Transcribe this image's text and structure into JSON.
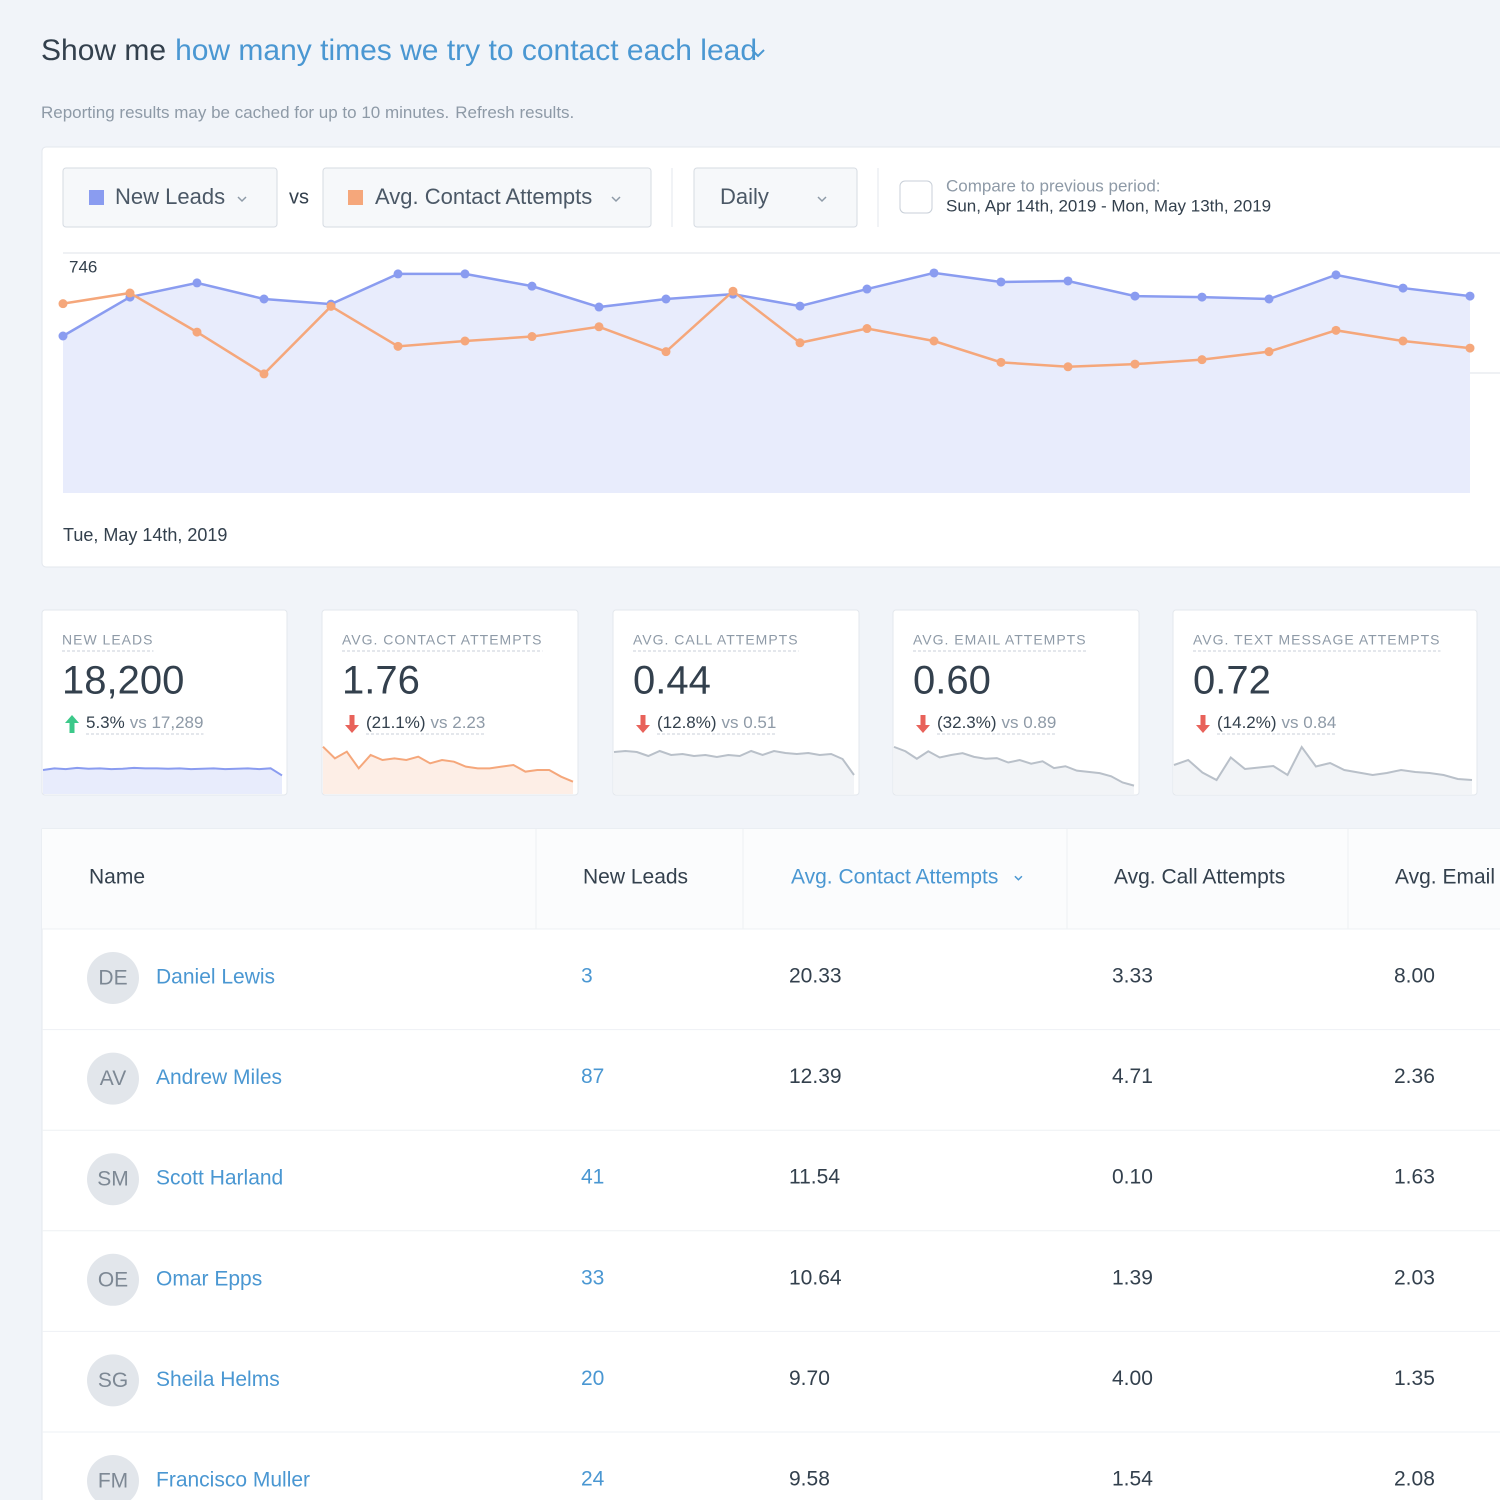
{
  "header": {
    "prefix": "Show me",
    "query": "how many times we try to contact each lead"
  },
  "notice": {
    "text": "Reporting results may be cached for up to 10 minutes.",
    "link": "Refresh results."
  },
  "controls": {
    "vs": "vs",
    "interval": "Daily",
    "compare": {
      "label": "Compare to previous period:",
      "range": "Sun, Apr 14th, 2019 - Mon, May 13th, 2019",
      "checked": false
    }
  },
  "chart_data": {
    "type": "line",
    "categories": [
      "Tue, May 14th, 2019",
      null,
      null,
      null,
      null,
      null,
      null,
      null,
      null,
      null,
      null,
      null,
      null,
      null,
      null,
      null,
      null,
      null,
      null,
      null,
      null,
      null
    ],
    "series": [
      {
        "name": "New Leads",
        "color": "#8a9cf0",
        "fill": "#e8ecfc",
        "values": [
          488,
          609,
          653,
          603,
          587,
          681,
          681,
          643,
          578,
          603,
          618,
          581,
          634,
          684,
          656,
          659,
          612,
          609,
          603,
          678,
          637,
          612
        ]
      },
      {
        "name": "Avg. Contact Attempts",
        "color": "#f5a77b",
        "axis": "y2",
        "values": [
          2.13,
          2.25,
          1.81,
          1.34,
          2.1,
          1.65,
          1.71,
          1.76,
          1.87,
          1.59,
          2.27,
          1.69,
          1.85,
          1.71,
          1.47,
          1.42,
          1.45,
          1.5,
          1.59,
          1.83,
          1.71,
          1.63
        ]
      }
    ],
    "ylim": [
      0,
      746
    ],
    "yticks": [
      373,
      746
    ],
    "y2lim": [
      0,
      2.7
    ],
    "grid": true,
    "area": true
  },
  "kpis": [
    {
      "label": "NEW LEADS",
      "value": "18,200",
      "direction": "up",
      "change": "5.3%",
      "compare": "vs 17,289",
      "color": "#8a9cf0",
      "fill": "#e8ecfc",
      "spark": {
        "ylim": [
          0,
          1200
        ],
        "values": [
          600,
          640,
          620,
          650,
          630,
          640,
          620,
          630,
          650,
          640,
          640,
          630,
          640,
          620,
          630,
          640,
          620,
          630,
          640,
          620,
          640,
          470
        ]
      }
    },
    {
      "label": "AVG. CONTACT ATTEMPTS",
      "value": "1.76",
      "direction": "down",
      "change": "(21.1%)",
      "compare": "vs 2.23",
      "color": "#f5a77b",
      "fill": "#fdeee6",
      "spark": {
        "ylim": [
          0,
          3
        ],
        "values": [
          2.9,
          2.2,
          2.6,
          1.6,
          2.4,
          2.1,
          2.2,
          2.1,
          2.3,
          1.9,
          2.1,
          2.0,
          1.7,
          1.6,
          1.6,
          1.7,
          1.8,
          1.4,
          1.5,
          1.5,
          1.1,
          0.8
        ]
      }
    },
    {
      "label": "AVG. CALL ATTEMPTS",
      "value": "0.44",
      "direction": "down",
      "change": "(12.8%)",
      "compare": "vs 0.51",
      "color": "#b9c0c9",
      "fill": "#f2f4f7",
      "spark": {
        "ylim": [
          0,
          0.5
        ],
        "values": [
          0.43,
          0.44,
          0.43,
          0.39,
          0.44,
          0.4,
          0.41,
          0.39,
          0.4,
          0.38,
          0.4,
          0.39,
          0.44,
          0.4,
          0.44,
          0.42,
          0.41,
          0.42,
          0.4,
          0.41,
          0.36,
          0.2
        ]
      }
    },
    {
      "label": "AVG. EMAIL ATTEMPTS",
      "value": "0.60",
      "direction": "down",
      "change": "(32.3%)",
      "compare": "vs 0.89",
      "color": "#b9c0c9",
      "fill": "#f2f4f7",
      "spark": {
        "ylim": [
          0,
          0.8
        ],
        "values": [
          0.77,
          0.7,
          0.58,
          0.7,
          0.6,
          0.64,
          0.67,
          0.61,
          0.58,
          0.59,
          0.52,
          0.56,
          0.5,
          0.54,
          0.43,
          0.46,
          0.39,
          0.37,
          0.35,
          0.3,
          0.2,
          0.15
        ]
      }
    },
    {
      "label": "AVG. TEXT MESSAGE ATTEMPTS",
      "value": "0.72",
      "direction": "down",
      "change": "(14.2%)",
      "compare": "vs 0.84",
      "color": "#b9c0c9",
      "fill": "#f2f4f7",
      "spark": {
        "ylim": [
          0,
          1
        ],
        "values": [
          0.6,
          0.7,
          0.45,
          0.3,
          0.75,
          0.52,
          0.55,
          0.58,
          0.4,
          0.96,
          0.57,
          0.64,
          0.5,
          0.45,
          0.4,
          0.44,
          0.5,
          0.46,
          0.44,
          0.4,
          0.32,
          0.3
        ]
      }
    }
  ],
  "table": {
    "columns": [
      "Name",
      "New Leads",
      "Avg. Contact Attempts",
      "Avg. Call Attempts",
      "Avg. Email"
    ],
    "sort_column": 2,
    "rows": [
      [
        "DE",
        "Daniel Lewis",
        "3",
        "20.33",
        "3.33",
        "8.00"
      ],
      [
        "AV",
        "Andrew Miles",
        "87",
        "12.39",
        "4.71",
        "2.36"
      ],
      [
        "SM",
        "Scott Harland",
        "41",
        "11.54",
        "0.10",
        "1.63"
      ],
      [
        "OE",
        "Omar Epps",
        "33",
        "10.64",
        "1.39",
        "2.03"
      ],
      [
        "SG",
        "Sheila Helms",
        "20",
        "9.70",
        "4.00",
        "1.35"
      ],
      [
        "FM",
        "Francisco Muller",
        "24",
        "9.58",
        "1.54",
        "2.08"
      ]
    ]
  }
}
